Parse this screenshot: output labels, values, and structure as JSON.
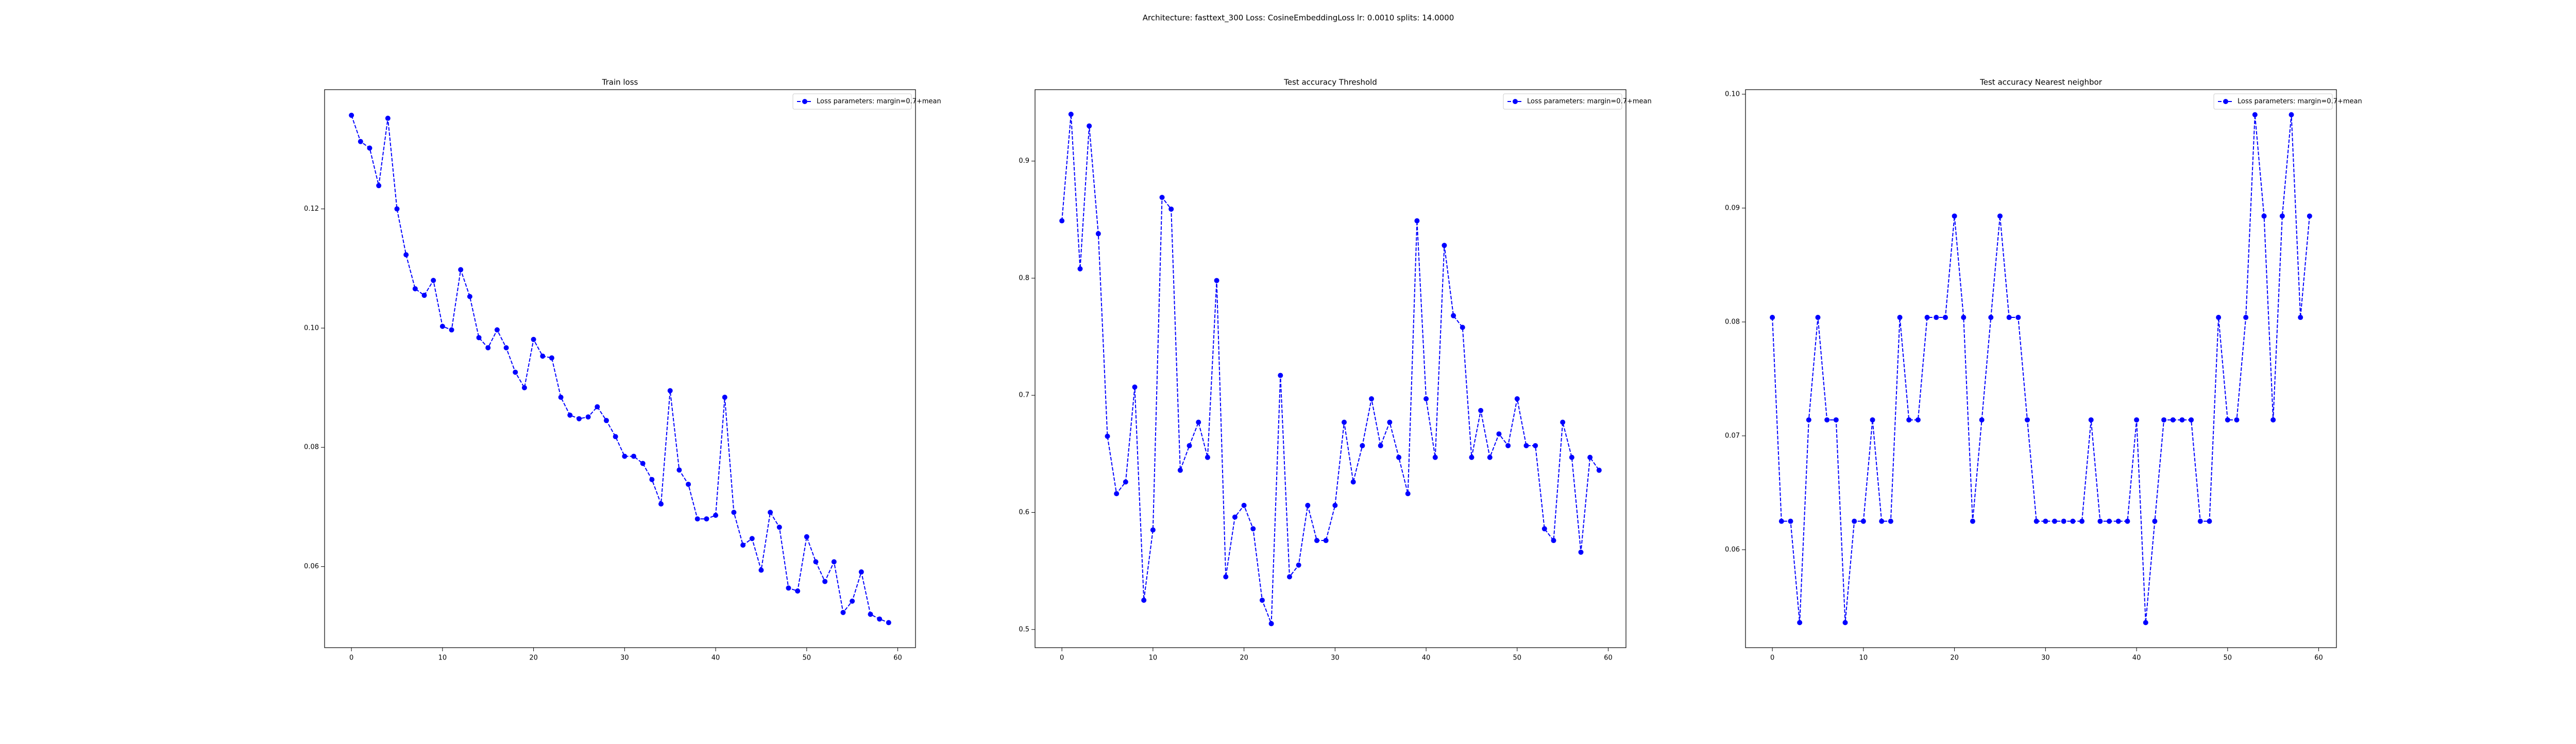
{
  "title": "Architecture: fasttext_300 Loss: CosineEmbeddingLoss lr: 0.0010 splits: 14.0000",
  "chart_data": [
    {
      "type": "line",
      "title": "Train loss",
      "x": [
        0,
        1,
        2,
        3,
        4,
        5,
        6,
        7,
        8,
        9,
        10,
        11,
        12,
        13,
        14,
        15,
        16,
        17,
        18,
        19,
        20,
        21,
        22,
        23,
        24,
        25,
        26,
        27,
        28,
        29,
        30,
        31,
        32,
        33,
        34,
        35,
        36,
        37,
        38,
        39,
        40,
        41,
        42,
        43,
        44,
        45,
        46,
        47,
        48,
        49,
        50,
        51,
        52,
        53,
        54,
        55,
        56,
        57,
        58,
        59
      ],
      "xlim": [
        -2.95,
        61.95
      ],
      "xticks": [
        0,
        10,
        20,
        30,
        40,
        50,
        60
      ],
      "ylim": [
        0.0464,
        0.14
      ],
      "yticks": [
        0.06,
        0.08,
        {
          "value": 0.1,
          "label": "0.10"
        },
        0.12
      ],
      "legend": "upper right",
      "series": [
        {
          "name": "Loss parameters: margin=0.7+mean",
          "color": "#0000ff",
          "values": [
            0.1357,
            0.1313,
            0.1302,
            0.1239,
            0.1352,
            0.12,
            0.1123,
            0.1066,
            0.1055,
            0.108,
            0.1003,
            0.0997,
            0.1098,
            0.1053,
            0.0984,
            0.0967,
            0.0997,
            0.0967,
            0.0926,
            0.09,
            0.0981,
            0.0953,
            0.095,
            0.0884,
            0.0854,
            0.0848,
            0.0851,
            0.0868,
            0.0845,
            0.0818,
            0.0785,
            0.0785,
            0.0773,
            0.0746,
            0.0705,
            0.0895,
            0.0762,
            0.0738,
            0.068,
            0.068,
            0.0686,
            0.0884,
            0.0691,
            0.0636,
            0.0647,
            0.0594,
            0.0691,
            0.0666,
            0.0564,
            0.0559,
            0.065,
            0.0608,
            0.0575,
            0.0608,
            0.0523,
            0.0542,
            0.0591,
            0.052,
            0.0512,
            0.0506
          ]
        }
      ]
    },
    {
      "type": "line",
      "title": "Test accuracy Threshold",
      "x": [
        0,
        1,
        2,
        3,
        4,
        5,
        6,
        7,
        8,
        9,
        10,
        11,
        12,
        13,
        14,
        15,
        16,
        17,
        18,
        19,
        20,
        21,
        22,
        23,
        24,
        25,
        26,
        27,
        28,
        29,
        30,
        31,
        32,
        33,
        34,
        35,
        36,
        37,
        38,
        39,
        40,
        41,
        42,
        43,
        44,
        45,
        46,
        47,
        48,
        49,
        50,
        51,
        52,
        53,
        54,
        55,
        56,
        57,
        58,
        59
      ],
      "xlim": [
        -2.95,
        61.95
      ],
      "xticks": [
        0,
        10,
        20,
        30,
        40,
        50,
        60
      ],
      "ylim": [
        0.4845,
        0.961
      ],
      "yticks": [
        0.5,
        0.6,
        0.7,
        0.8,
        0.9
      ],
      "legend": "upper right",
      "series": [
        {
          "name": "Loss parameters: margin=0.7+mean",
          "color": "#0000ff",
          "values": [
            0.849,
            0.94,
            0.808,
            0.93,
            0.838,
            0.665,
            0.616,
            0.626,
            0.707,
            0.525,
            0.585,
            0.869,
            0.859,
            0.636,
            0.657,
            0.677,
            0.647,
            0.798,
            0.545,
            0.596,
            0.606,
            0.586,
            0.525,
            0.505,
            0.717,
            0.545,
            0.555,
            0.606,
            0.576,
            0.576,
            0.606,
            0.677,
            0.626,
            0.657,
            0.697,
            0.657,
            0.677,
            0.647,
            0.616,
            0.849,
            0.697,
            0.647,
            0.828,
            0.768,
            0.758,
            0.647,
            0.687,
            0.647,
            0.667,
            0.657,
            0.697,
            0.657,
            0.657,
            0.586,
            0.576,
            0.677,
            0.647,
            0.566,
            0.647,
            0.636
          ]
        }
      ]
    },
    {
      "type": "line",
      "title": "Test accuracy Nearest neighbor",
      "x": [
        0,
        1,
        2,
        3,
        4,
        5,
        6,
        7,
        8,
        9,
        10,
        11,
        12,
        13,
        14,
        15,
        16,
        17,
        18,
        19,
        20,
        21,
        22,
        23,
        24,
        25,
        26,
        27,
        28,
        29,
        30,
        31,
        32,
        33,
        34,
        35,
        36,
        37,
        38,
        39,
        40,
        41,
        42,
        43,
        44,
        45,
        46,
        47,
        48,
        49,
        50,
        51,
        52,
        53,
        54,
        55,
        56,
        57,
        58,
        59
      ],
      "xlim": [
        -2.95,
        61.95
      ],
      "xticks": [
        0,
        10,
        20,
        30,
        40,
        50,
        60
      ],
      "ylim": [
        0.0514,
        0.1004
      ],
      "yticks": [
        0.06,
        0.07,
        0.08,
        0.09,
        {
          "value": 0.1,
          "label": "0.10"
        }
      ],
      "legend": "upper right",
      "series": [
        {
          "name": "Loss parameters: margin=0.7+mean",
          "color": "#0000ff",
          "values": [
            0.0804,
            0.0625,
            0.0625,
            0.0536,
            0.0714,
            0.0804,
            0.0714,
            0.0714,
            0.0536,
            0.0625,
            0.0625,
            0.0714,
            0.0625,
            0.0625,
            0.0804,
            0.0714,
            0.0714,
            0.0804,
            0.0804,
            0.0804,
            0.0893,
            0.0804,
            0.0625,
            0.0714,
            0.0804,
            0.0893,
            0.0804,
            0.0804,
            0.0714,
            0.0625,
            0.0625,
            0.0625,
            0.0625,
            0.0625,
            0.0625,
            0.0714,
            0.0625,
            0.0625,
            0.0625,
            0.0625,
            0.0714,
            0.0536,
            0.0625,
            0.0714,
            0.0714,
            0.0714,
            0.0714,
            0.0625,
            0.0625,
            0.0804,
            0.0714,
            0.0714,
            0.0804,
            0.0982,
            0.0893,
            0.0714,
            0.0893,
            0.0982,
            0.0804,
            0.0893
          ]
        }
      ]
    }
  ]
}
